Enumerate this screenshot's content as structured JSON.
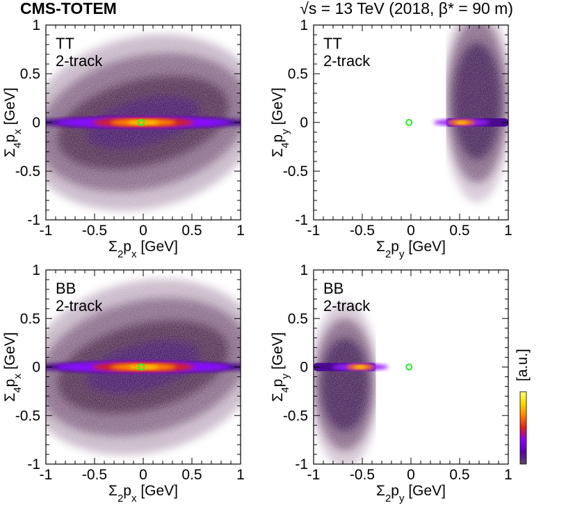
{
  "header": {
    "left": "CMS-TOTEM",
    "right": "√s = 13 TeV (2018, β* = 90 m)"
  },
  "colorbar": {
    "label": "[a.u.]",
    "colors": [
      "#604860",
      "#5a00b0",
      "#8a00ff",
      "#e02020",
      "#ff8000",
      "#ffd800",
      "#ffff70"
    ]
  },
  "marker_color": "#33ee33",
  "chart_data": [
    {
      "type": "heatmap",
      "id": "tl",
      "labels": [
        "TT",
        "2-track"
      ],
      "xlabel": {
        "sigma_sub": "2",
        "var": "p",
        "var_sub": "x",
        "unit": "[GeV]"
      },
      "ylabel": {
        "sigma_sub": "4",
        "var": "p",
        "var_sub": "x",
        "unit": "[GeV]"
      },
      "xlim": [
        -1,
        1
      ],
      "ylim": [
        -1,
        1
      ],
      "xticks": [
        "-1",
        "-0.5",
        "0",
        "0.5",
        "1"
      ],
      "yticks": [
        "-1",
        "-0.5",
        "0",
        "0.5",
        "1"
      ],
      "marker": {
        "x": -0.02,
        "y": 0.0
      },
      "core": {
        "xmin": -1.0,
        "xmax": 1.0,
        "center_x": 0.0,
        "center_y": 0.0
      }
    },
    {
      "type": "heatmap",
      "id": "tr",
      "labels": [
        "TT",
        "2-track"
      ],
      "xlabel": {
        "sigma_sub": "2",
        "var": "p",
        "var_sub": "y",
        "unit": "[GeV]"
      },
      "ylabel": {
        "sigma_sub": "4",
        "var": "p",
        "var_sub": "y",
        "unit": "[GeV]"
      },
      "xlim": [
        -1,
        1
      ],
      "ylim": [
        -1,
        1
      ],
      "xticks": [
        "-1",
        "-0.5",
        "0",
        "0.5",
        "1"
      ],
      "yticks": [
        "-1",
        "-0.5",
        "0",
        "0.5",
        "1"
      ],
      "marker": {
        "x": -0.02,
        "y": 0.0
      },
      "core": {
        "xmin": 0.36,
        "xmax": 1.0,
        "center_x": 0.52,
        "center_y": 0.0
      }
    },
    {
      "type": "heatmap",
      "id": "bl",
      "labels": [
        "BB",
        "2-track"
      ],
      "xlabel": {
        "sigma_sub": "2",
        "var": "p",
        "var_sub": "x",
        "unit": "[GeV]"
      },
      "ylabel": {
        "sigma_sub": "4",
        "var": "p",
        "var_sub": "x",
        "unit": "[GeV]"
      },
      "xlim": [
        -1,
        1
      ],
      "ylim": [
        -1,
        1
      ],
      "xticks": [
        "-1",
        "-0.5",
        "0",
        "0.5",
        "1"
      ],
      "yticks": [
        "-1",
        "-0.5",
        "0",
        "0.5",
        "1"
      ],
      "marker": {
        "x": -0.02,
        "y": 0.0
      },
      "core": {
        "xmin": -1.0,
        "xmax": 1.0,
        "center_x": 0.0,
        "center_y": 0.0
      }
    },
    {
      "type": "heatmap",
      "id": "br",
      "labels": [
        "BB",
        "2-track"
      ],
      "xlabel": {
        "sigma_sub": "2",
        "var": "p",
        "var_sub": "y",
        "unit": "[GeV]"
      },
      "ylabel": {
        "sigma_sub": "4",
        "var": "p",
        "var_sub": "y",
        "unit": "[GeV]"
      },
      "xlim": [
        -1,
        1
      ],
      "ylim": [
        -1,
        1
      ],
      "xticks": [
        "-1",
        "-0.5",
        "0",
        "0.5",
        "1"
      ],
      "yticks": [
        "-1",
        "-0.5",
        "0",
        "0.5",
        "1"
      ],
      "marker": {
        "x": -0.02,
        "y": 0.0
      },
      "core": {
        "xmin": -1.0,
        "xmax": -0.36,
        "center_x": -0.52,
        "center_y": 0.0
      }
    }
  ]
}
